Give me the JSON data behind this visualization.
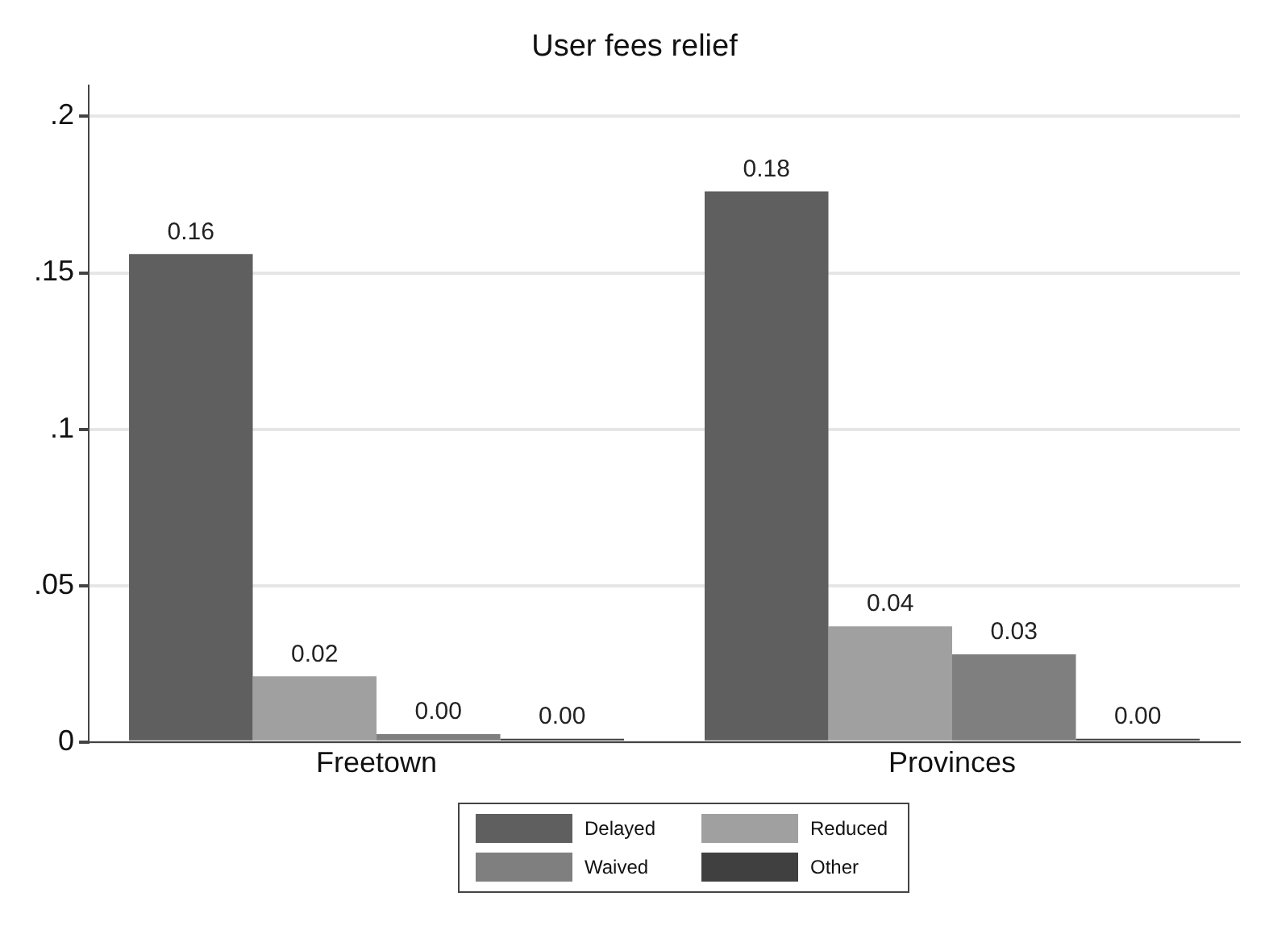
{
  "chart_data": {
    "type": "bar",
    "title": "User fees relief",
    "categories": [
      "Freetown",
      "Provinces"
    ],
    "series": [
      {
        "name": "Delayed",
        "color": "#5f5f5f",
        "values": [
          0.156,
          0.176
        ],
        "value_labels": [
          "0.16",
          "0.18"
        ]
      },
      {
        "name": "Reduced",
        "color": "#a0a0a0",
        "values": [
          0.021,
          0.037
        ],
        "value_labels": [
          "0.02",
          "0.04"
        ]
      },
      {
        "name": "Waived",
        "color": "#7f7f7f",
        "values": [
          0.0025,
          0.028
        ],
        "value_labels": [
          "0.00",
          "0.03"
        ]
      },
      {
        "name": "Other",
        "color": "#404040",
        "values": [
          0,
          0
        ],
        "value_labels": [
          "0.00",
          "0.00"
        ]
      }
    ],
    "ylim": [
      0,
      0.21
    ],
    "yticks": [
      0,
      {
        "value": 0.05,
        "label": ".05"
      },
      {
        "value": 0.1,
        "label": ".1"
      },
      {
        "value": 0.15,
        "label": ".15"
      },
      {
        "value": 0.2,
        "label": ".2"
      }
    ],
    "grid": "y",
    "legend": "bottom"
  }
}
